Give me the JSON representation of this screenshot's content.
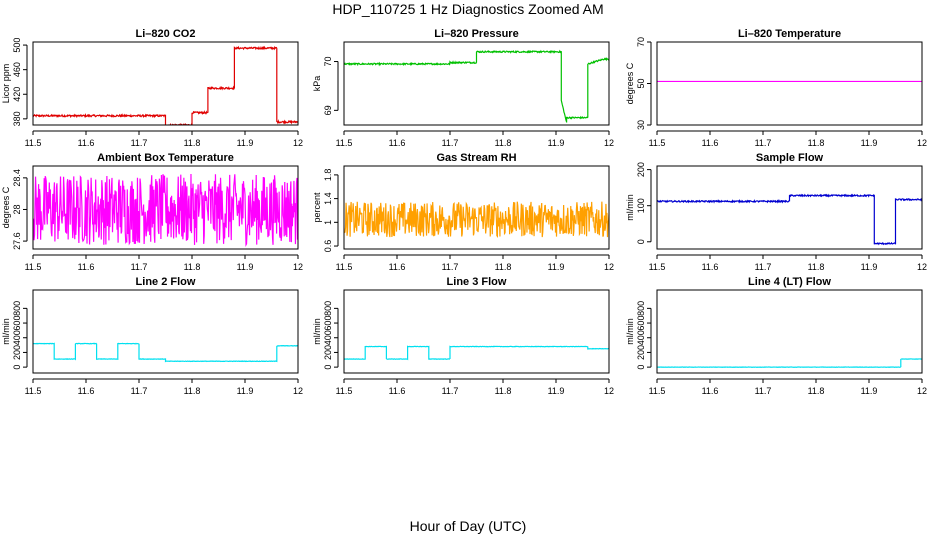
{
  "title": "HDP_110725  1 Hz Diagnostics Zoomed AM",
  "xlabel": "Hour of Day (UTC)",
  "chart_data": [
    {
      "type": "line",
      "title": "Li–820 CO2",
      "ylabel": "Licor ppm",
      "color": "#e00000",
      "xlim": [
        11.5,
        12.0
      ],
      "xticks": [
        11.5,
        11.6,
        11.7,
        11.8,
        11.9,
        12.0
      ],
      "ylim": [
        370,
        505
      ],
      "yticks": [
        380,
        420,
        460,
        500
      ],
      "x": [
        11.5,
        11.75,
        11.75,
        11.8,
        11.8,
        11.83,
        11.83,
        11.88,
        11.88,
        11.96,
        11.96,
        12.0
      ],
      "y": [
        385,
        385,
        370,
        370,
        390,
        390,
        430,
        430,
        495,
        495,
        375,
        375
      ],
      "noise": 1.5
    },
    {
      "type": "line",
      "title": "Li–820 Pressure",
      "ylabel": "kPa",
      "color": "#00c000",
      "xlim": [
        11.5,
        12.0
      ],
      "xticks": [
        11.5,
        11.6,
        11.7,
        11.8,
        11.9,
        12.0
      ],
      "ylim": [
        68.7,
        70.4
      ],
      "yticks": [
        69.0,
        70.0
      ],
      "x": [
        11.5,
        11.7,
        11.7,
        11.75,
        11.75,
        11.91,
        11.91,
        11.92,
        11.92,
        11.96,
        11.96,
        11.99,
        11.99,
        12.0
      ],
      "y": [
        69.95,
        69.95,
        69.98,
        69.98,
        70.2,
        70.2,
        69.2,
        68.75,
        68.85,
        68.85,
        69.95,
        70.05,
        70.05,
        70.05
      ],
      "noise": 0.015
    },
    {
      "type": "line",
      "title": "Li–820 Temperature",
      "ylabel": "degrees C",
      "color": "#ff00ff",
      "xlim": [
        11.5,
        12.0
      ],
      "xticks": [
        11.5,
        11.6,
        11.7,
        11.8,
        11.9,
        12.0
      ],
      "ylim": [
        30,
        70
      ],
      "yticks": [
        30,
        50,
        70
      ],
      "x": [
        11.5,
        12.0
      ],
      "y": [
        51,
        51
      ],
      "noise": 0
    },
    {
      "type": "line",
      "title": "Ambient Box Temperature",
      "ylabel": "degrees C",
      "color": "#ff00ff",
      "xlim": [
        11.5,
        12.0
      ],
      "xticks": [
        11.5,
        11.6,
        11.7,
        11.8,
        11.9,
        12.0
      ],
      "ylim": [
        27.5,
        28.55
      ],
      "yticks": [
        27.6,
        28.0,
        28.4
      ],
      "x": [
        11.5,
        12.0
      ],
      "y": [
        28.0,
        28.0
      ],
      "noise": 0.45
    },
    {
      "type": "line",
      "title": "Gas Stream RH",
      "ylabel": "percent",
      "color": "#ffa000",
      "xlim": [
        11.5,
        12.0
      ],
      "xticks": [
        11.5,
        11.6,
        11.7,
        11.8,
        11.9,
        12.0
      ],
      "ylim": [
        0.55,
        1.95
      ],
      "yticks": [
        0.6,
        1.0,
        1.4,
        1.8
      ],
      "x": [
        11.5,
        12.0
      ],
      "y": [
        1.05,
        1.05
      ],
      "noise": 0.3
    },
    {
      "type": "line",
      "title": "Sample Flow",
      "ylabel": "ml/min",
      "color": "#0000d0",
      "xlim": [
        11.5,
        12.0
      ],
      "xticks": [
        11.5,
        11.6,
        11.7,
        11.8,
        11.9,
        12.0
      ],
      "ylim": [
        -20,
        210
      ],
      "yticks": [
        0,
        100,
        200
      ],
      "x": [
        11.5,
        11.75,
        11.75,
        11.91,
        11.91,
        11.95,
        11.95,
        12.0
      ],
      "y": [
        112,
        112,
        128,
        128,
        -5,
        -5,
        117,
        117
      ],
      "noise": 2
    },
    {
      "type": "line",
      "title": "Line 2 Flow",
      "ylabel": "ml/min",
      "color": "#00e0f0",
      "xlim": [
        11.5,
        12.0
      ],
      "xticks": [
        11.5,
        11.6,
        11.7,
        11.8,
        11.9,
        12.0
      ],
      "ylim": [
        -80,
        1050
      ],
      "yticks": [
        0,
        200,
        400,
        600,
        800
      ],
      "x": [
        11.5,
        11.54,
        11.54,
        11.58,
        11.58,
        11.62,
        11.62,
        11.66,
        11.66,
        11.7,
        11.7,
        11.75,
        11.75,
        11.96,
        11.96,
        12.0
      ],
      "y": [
        320,
        320,
        110,
        110,
        320,
        320,
        110,
        110,
        320,
        320,
        110,
        110,
        80,
        80,
        290,
        290
      ],
      "noise": 3
    },
    {
      "type": "line",
      "title": "Line 3 Flow",
      "ylabel": "ml/min",
      "color": "#00e0f0",
      "xlim": [
        11.5,
        12.0
      ],
      "xticks": [
        11.5,
        11.6,
        11.7,
        11.8,
        11.9,
        12.0
      ],
      "ylim": [
        -80,
        1050
      ],
      "yticks": [
        0,
        200,
        400,
        600,
        800
      ],
      "x": [
        11.5,
        11.54,
        11.54,
        11.58,
        11.58,
        11.62,
        11.62,
        11.66,
        11.66,
        11.7,
        11.7,
        11.96,
        11.96,
        12.0
      ],
      "y": [
        110,
        110,
        280,
        280,
        110,
        110,
        280,
        280,
        110,
        110,
        280,
        280,
        250,
        250
      ],
      "noise": 3
    },
    {
      "type": "line",
      "title": "Line 4 (LT) Flow",
      "ylabel": "ml/min",
      "color": "#00e0f0",
      "xlim": [
        11.5,
        12.0
      ],
      "xticks": [
        11.5,
        11.6,
        11.7,
        11.8,
        11.9,
        12.0
      ],
      "ylim": [
        -80,
        1050
      ],
      "yticks": [
        0,
        200,
        400,
        600,
        800
      ],
      "x": [
        11.5,
        11.96,
        11.96,
        12.0
      ],
      "y": [
        0,
        0,
        110,
        110
      ],
      "noise": 2
    }
  ]
}
